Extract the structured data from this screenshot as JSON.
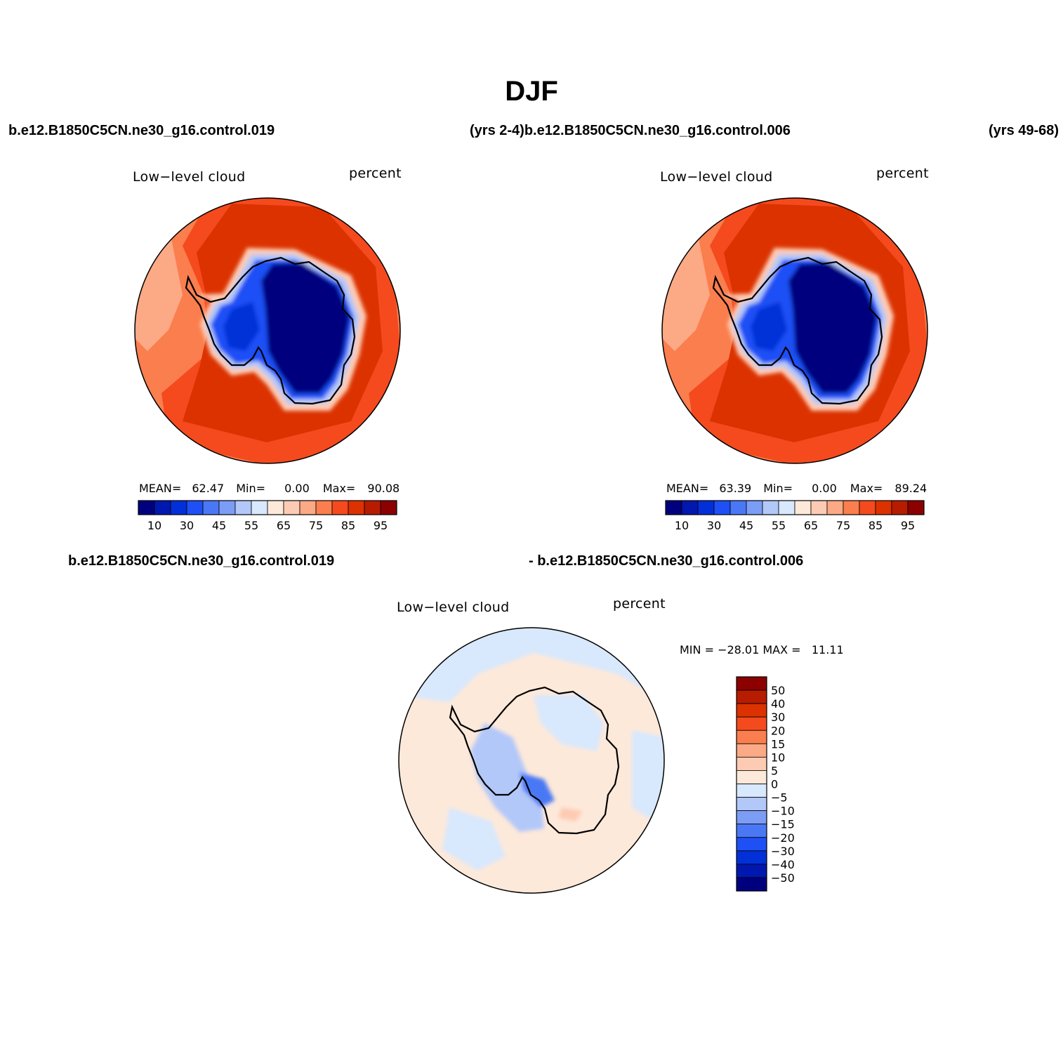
{
  "figure": {
    "title": "DJF",
    "header_left": "b.e12.B1850C5CN.ne30_g16.control.019",
    "header_mid": "(yrs 2-4)b.e12.B1850C5CN.ne30_g16.control.006",
    "header_right": "(yrs 49-68)",
    "diff_header_left": "b.e12.B1850C5CN.ne30_g16.control.019",
    "diff_header_right": "- b.e12.B1850C5CN.ne30_g16.control.006"
  },
  "panels": [
    {
      "id": "case1",
      "variable_label": "Low−level cloud",
      "units_label": "percent",
      "stats": {
        "mean_label": "MEAN=",
        "mean": "62.47",
        "min_label": "Min=",
        "min": "0.00",
        "max_label": "Max=",
        "max": "90.08"
      }
    },
    {
      "id": "case2",
      "variable_label": "Low−level cloud",
      "units_label": "percent",
      "stats": {
        "mean_label": "MEAN=",
        "mean": "63.39",
        "min_label": "Min=",
        "min": "0.00",
        "max_label": "Max=",
        "max": "89.24"
      }
    },
    {
      "id": "difference",
      "variable_label": "Low−level cloud",
      "units_label": "percent",
      "minmax_text": "MIN = −28.01 MAX =   11.11"
    }
  ],
  "colorbar_main": {
    "colors": [
      "#00007f",
      "#0018b0",
      "#0230d8",
      "#1e50f5",
      "#4a78f5",
      "#7c9df5",
      "#b2c8f9",
      "#d8e8fd",
      "#fde9da",
      "#fdcbb3",
      "#fca985",
      "#fb7e4e",
      "#f54a1e",
      "#dc3200",
      "#b71c00",
      "#8c0000"
    ],
    "tick_labels": [
      "10",
      "30",
      "45",
      "55",
      "65",
      "75",
      "85",
      "95"
    ]
  },
  "colorbar_diff": {
    "colors": [
      "#8c0000",
      "#b71c00",
      "#dc3200",
      "#f54a1e",
      "#fb7e4e",
      "#fca985",
      "#fdcbb3",
      "#fde9da",
      "#d8e8fd",
      "#b2c8f9",
      "#7c9df5",
      "#4a78f5",
      "#1e50f5",
      "#0230d8",
      "#0018b0",
      "#00007f"
    ],
    "tick_labels": [
      "50",
      "40",
      "30",
      "20",
      "15",
      "10",
      "5",
      "0",
      "−5",
      "−10",
      "−15",
      "−20",
      "−30",
      "−40",
      "−50"
    ]
  },
  "chart_data": [
    {
      "type": "heatmap",
      "projection": "south polar stereographic",
      "title": "Low−level cloud",
      "units": "percent",
      "case": "b.e12.B1850C5CN.ne30_g16.control.019",
      "period": "yrs 2-4",
      "mean": 62.47,
      "min": 0.0,
      "max": 90.08,
      "contour_levels": [
        5,
        10,
        20,
        30,
        40,
        45,
        50,
        55,
        60,
        65,
        70,
        75,
        80,
        85,
        90,
        95
      ]
    },
    {
      "type": "heatmap",
      "projection": "south polar stereographic",
      "title": "Low−level cloud",
      "units": "percent",
      "case": "b.e12.B1850C5CN.ne30_g16.control.006",
      "period": "yrs 49-68",
      "mean": 63.39,
      "min": 0.0,
      "max": 89.24,
      "contour_levels": [
        5,
        10,
        20,
        30,
        40,
        45,
        50,
        55,
        60,
        65,
        70,
        75,
        80,
        85,
        90,
        95
      ]
    },
    {
      "type": "heatmap",
      "projection": "south polar stereographic",
      "title": "Low−level cloud",
      "units": "percent",
      "case": "b.e12.B1850C5CN.ne30_g16.control.019 - b.e12.B1850C5CN.ne30_g16.control.006",
      "min": -28.01,
      "max": 11.11,
      "contour_levels": [
        -50,
        -40,
        -30,
        -20,
        -15,
        -10,
        -5,
        0,
        5,
        10,
        15,
        20,
        30,
        40,
        50
      ]
    }
  ]
}
